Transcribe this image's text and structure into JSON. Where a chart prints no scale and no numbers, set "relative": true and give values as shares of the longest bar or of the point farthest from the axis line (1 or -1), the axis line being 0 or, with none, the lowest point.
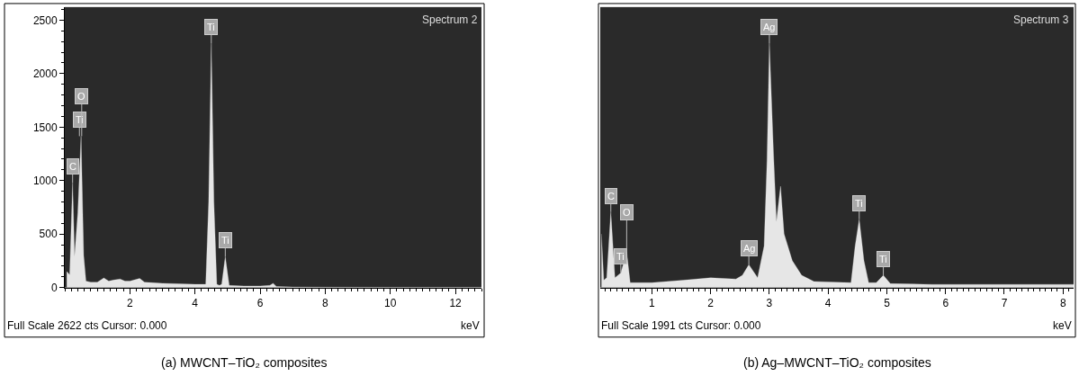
{
  "chart_data": [
    {
      "type": "area",
      "title": "(a) MWCNT–TiO₂ composites",
      "xlabel": "keV",
      "color": "#e6e6e6",
      "x": [
        0.06,
        0.15,
        0.24,
        0.3,
        0.4,
        0.5,
        0.58,
        0.65,
        0.8,
        1.0,
        1.2,
        1.35,
        1.5,
        1.7,
        1.85,
        2.0,
        2.3,
        2.45,
        2.7,
        3.0,
        3.5,
        4.0,
        4.33,
        4.42,
        4.5,
        4.58,
        4.67,
        4.75,
        4.82,
        4.93,
        5.05,
        5.5,
        6.0,
        6.3,
        6.4,
        6.5,
        7.0,
        8.0,
        10.0,
        12.8
      ],
      "values": [
        150,
        120,
        980,
        290,
        700,
        1415,
        300,
        60,
        50,
        50,
        90,
        60,
        70,
        80,
        60,
        60,
        85,
        50,
        45,
        40,
        35,
        30,
        30,
        800,
        2283,
        800,
        30,
        20,
        30,
        290,
        20,
        15,
        15,
        20,
        40,
        10,
        5,
        3,
        2,
        2
      ],
      "annotations": [
        "Spectrum 2",
        "Full Scale 2622 cts Cursor: 0.000",
        {
          "text": "C",
          "x": 0.24,
          "y": 980
        },
        {
          "text": "Ti",
          "x": 0.45,
          "y": 1415
        },
        {
          "text": "O",
          "x": 0.52,
          "y": 1415
        },
        {
          "text": "Ti",
          "x": 4.5,
          "y": 2283
        },
        {
          "text": "Ti",
          "x": 4.93,
          "y": 290
        }
      ],
      "xlim": [
        0,
        12.8
      ],
      "xticks": [
        2,
        4,
        6,
        8,
        10,
        12
      ],
      "ylim": [
        0,
        2622
      ],
      "yticks": [
        0,
        500,
        1000,
        1500,
        2000,
        2500
      ]
    },
    {
      "type": "area",
      "title": "(b) Ag–MWCNT–TiO₂ composites",
      "xlabel": "keV",
      "color": "#e6e6e6",
      "relative": true,
      "tick_labels": "x",
      "x": [
        0.14,
        0.18,
        0.23,
        0.3,
        0.37,
        0.47,
        0.57,
        0.63,
        1.0,
        1.53,
        2.0,
        2.43,
        2.54,
        2.65,
        2.8,
        2.91,
        2.96,
        3.0,
        3.07,
        3.12,
        3.19,
        3.25,
        3.39,
        3.55,
        3.76,
        4.39,
        4.46,
        4.53,
        4.61,
        4.69,
        4.82,
        4.94,
        5.06,
        5.77,
        8.18
      ],
      "values": [
        0.22,
        0.03,
        0.04,
        0.31,
        0.04,
        0.06,
        0.145,
        0.02,
        0.02,
        0.03,
        0.04,
        0.035,
        0.05,
        0.094,
        0.04,
        0.17,
        0.52,
        1.0,
        0.55,
        0.27,
        0.415,
        0.22,
        0.11,
        0.05,
        0.025,
        0.02,
        0.17,
        0.28,
        0.11,
        0.02,
        0.02,
        0.05,
        0.016,
        0.013,
        0.013
      ],
      "annotations": [
        "Spectrum 3",
        "Full Scale 1991 cts Cursor: 0.000",
        {
          "text": "C",
          "x": 0.3,
          "y": 0.31
        },
        {
          "text": "Ti",
          "x": 0.47,
          "y": 0.06
        },
        {
          "text": "O",
          "x": 0.57,
          "y": 0.145
        },
        {
          "text": "Ag",
          "x": 2.65,
          "y": 0.094
        },
        {
          "text": "Ag",
          "x": 3.0,
          "y": 1.0
        },
        {
          "text": "Ti",
          "x": 4.53,
          "y": 0.28
        },
        {
          "text": "Ti",
          "x": 4.94,
          "y": 0.05
        }
      ],
      "xlim": [
        0.12,
        8.18
      ],
      "xticks": [
        1,
        2,
        3,
        4,
        5,
        6,
        7,
        8
      ]
    }
  ]
}
